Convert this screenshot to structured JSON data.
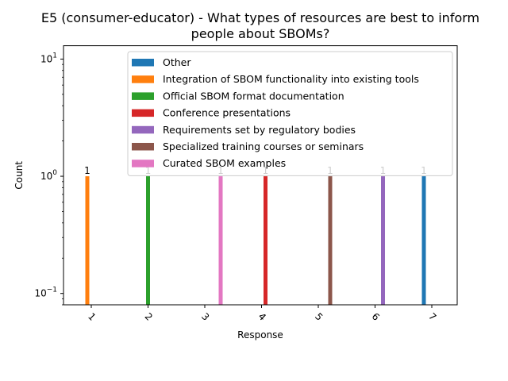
{
  "chart_data": {
    "type": "bar",
    "title": "E5 (consumer-educator) - What types of resources are best to inform people about SBOMs?",
    "title_lines": [
      "E5 (consumer-educator) - What types of resources are best to inform",
      "people about SBOMs?"
    ],
    "xlabel": "Response",
    "ylabel": "Count",
    "yscale": "log",
    "ylim": [
      0.08,
      13
    ],
    "y_ticks": [
      {
        "value": 0.1,
        "base": "10",
        "exp": "−1"
      },
      {
        "value": 1,
        "base": "10",
        "exp": "0"
      },
      {
        "value": 10,
        "base": "10",
        "exp": "1"
      }
    ],
    "categories": [
      "1",
      "2",
      "3",
      "4",
      "5",
      "6",
      "7"
    ],
    "grid": false,
    "legend_position": "top-right",
    "series": [
      {
        "name": "Other",
        "color": "#1f77b4",
        "values": [
          0,
          0,
          0,
          0,
          0,
          0,
          1
        ]
      },
      {
        "name": "Integration of SBOM functionality into existing tools",
        "color": "#ff7f0e",
        "values": [
          1,
          0,
          0,
          0,
          0,
          0,
          0
        ]
      },
      {
        "name": "Official SBOM format documentation",
        "color": "#2ca02c",
        "values": [
          0,
          1,
          0,
          0,
          0,
          0,
          0
        ]
      },
      {
        "name": "Conference presentations",
        "color": "#d62728",
        "values": [
          0,
          0,
          0,
          1,
          0,
          0,
          0
        ]
      },
      {
        "name": "Requirements set by regulatory bodies",
        "color": "#9467bd",
        "values": [
          0,
          0,
          0,
          0,
          0,
          1,
          0
        ]
      },
      {
        "name": "Specialized training courses or seminars",
        "color": "#8c564b",
        "values": [
          0,
          0,
          0,
          0,
          1,
          0,
          0
        ]
      },
      {
        "name": "Curated SBOM examples",
        "color": "#e377c2",
        "values": [
          0,
          0,
          1,
          0,
          0,
          0,
          0
        ]
      }
    ]
  }
}
